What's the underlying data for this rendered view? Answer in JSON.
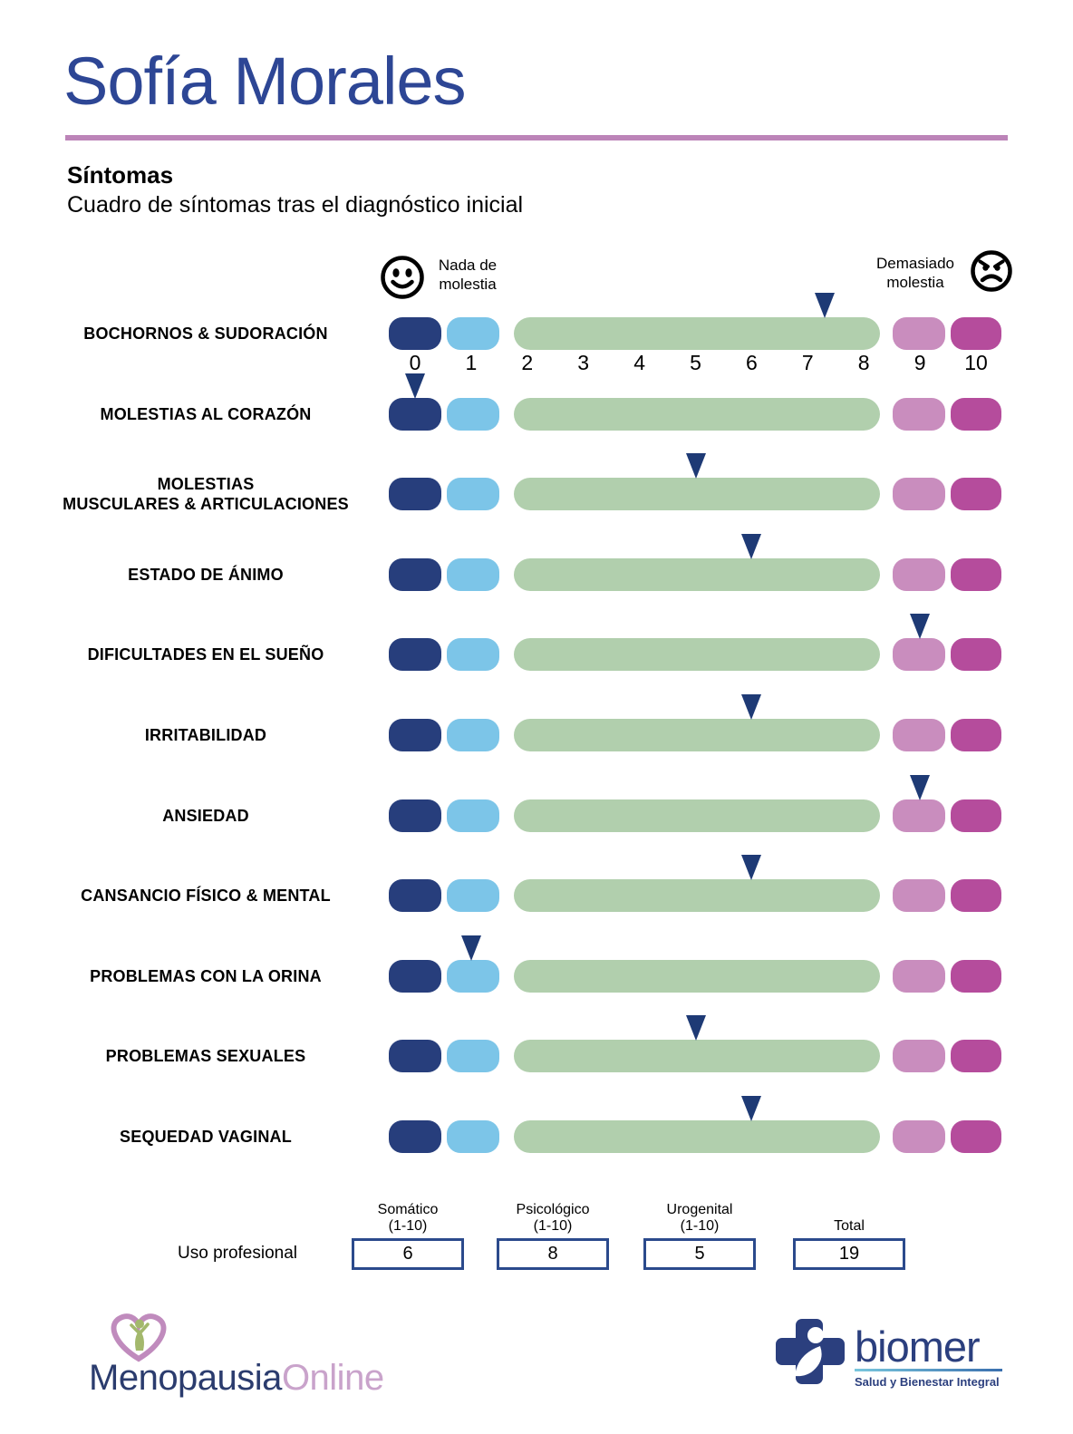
{
  "patient_name": "Sofía Morales",
  "section": {
    "heading": "Síntomas",
    "subheading": "Cuadro de síntomas tras el diagnóstico inicial"
  },
  "legend": {
    "left_line1": "Nada de",
    "left_line2": "molestia",
    "right_line1": "Demasiado",
    "right_line2": "molestia"
  },
  "chart_data": {
    "type": "scatter",
    "title": "Cuadro de síntomas tras el diagnóstico inicial",
    "xlabel": "",
    "ylabel": "",
    "xlim": [
      0,
      10
    ],
    "ticks": [
      0,
      1,
      2,
      3,
      4,
      5,
      6,
      7,
      8,
      9,
      10
    ],
    "categories": [
      "BOCHORNOS & SUDORACIÓN",
      "MOLESTIAS AL CORAZÓN",
      "MOLESTIAS\nMUSCULARES & ARTICULACIONES",
      "ESTADO DE ÁNIMO",
      "DIFICULTADES EN EL SUEÑO",
      "IRRITABILIDAD",
      "ANSIEDAD",
      "CANSANCIO FÍSICO & MENTAL",
      "PROBLEMAS CON LA ORINA",
      "PROBLEMAS SEXUALES",
      "SEQUEDAD VAGINAL"
    ],
    "values": [
      7.3,
      0,
      5,
      6,
      9,
      6,
      9,
      6,
      1,
      5,
      6
    ],
    "marker": {
      "shape": "triangle-down",
      "color": "#1e3a75"
    },
    "segments": [
      {
        "range": [
          0,
          0
        ],
        "color": "#273e7c"
      },
      {
        "range": [
          1,
          1
        ],
        "color": "#7cc5e8"
      },
      {
        "range": [
          2,
          8
        ],
        "color": "#b1cfad"
      },
      {
        "range": [
          9,
          9
        ],
        "color": "#c98dbe"
      },
      {
        "range": [
          10,
          10
        ],
        "color": "#b54c9c"
      }
    ]
  },
  "scores": {
    "row_label": "Uso profesional",
    "items": [
      {
        "header_lines": [
          "Somático",
          "(1-10)"
        ],
        "value": "6"
      },
      {
        "header_lines": [
          "Psicológico",
          "(1-10)"
        ],
        "value": "8"
      },
      {
        "header_lines": [
          "Urogenital",
          "(1-10)"
        ],
        "value": "5"
      },
      {
        "header_lines": [
          "Total"
        ],
        "value": "19"
      }
    ]
  },
  "footer": {
    "menopausia": {
      "part1": "Menopausia",
      "part2": "Online"
    },
    "biomer": {
      "name": "biomer",
      "tagline": "Salud y Bienestar Integral"
    }
  },
  "colors": {
    "title_text": "#2d4695",
    "divider": "#bc84b8",
    "segment_0": "#273e7c",
    "segment_1": "#7cc5e8",
    "segment_2_8": "#b1cfad",
    "segment_9": "#c98dbe",
    "segment_10": "#b54c9c",
    "marker": "#1e3a75",
    "score_box_border": "#2b4a8c"
  }
}
